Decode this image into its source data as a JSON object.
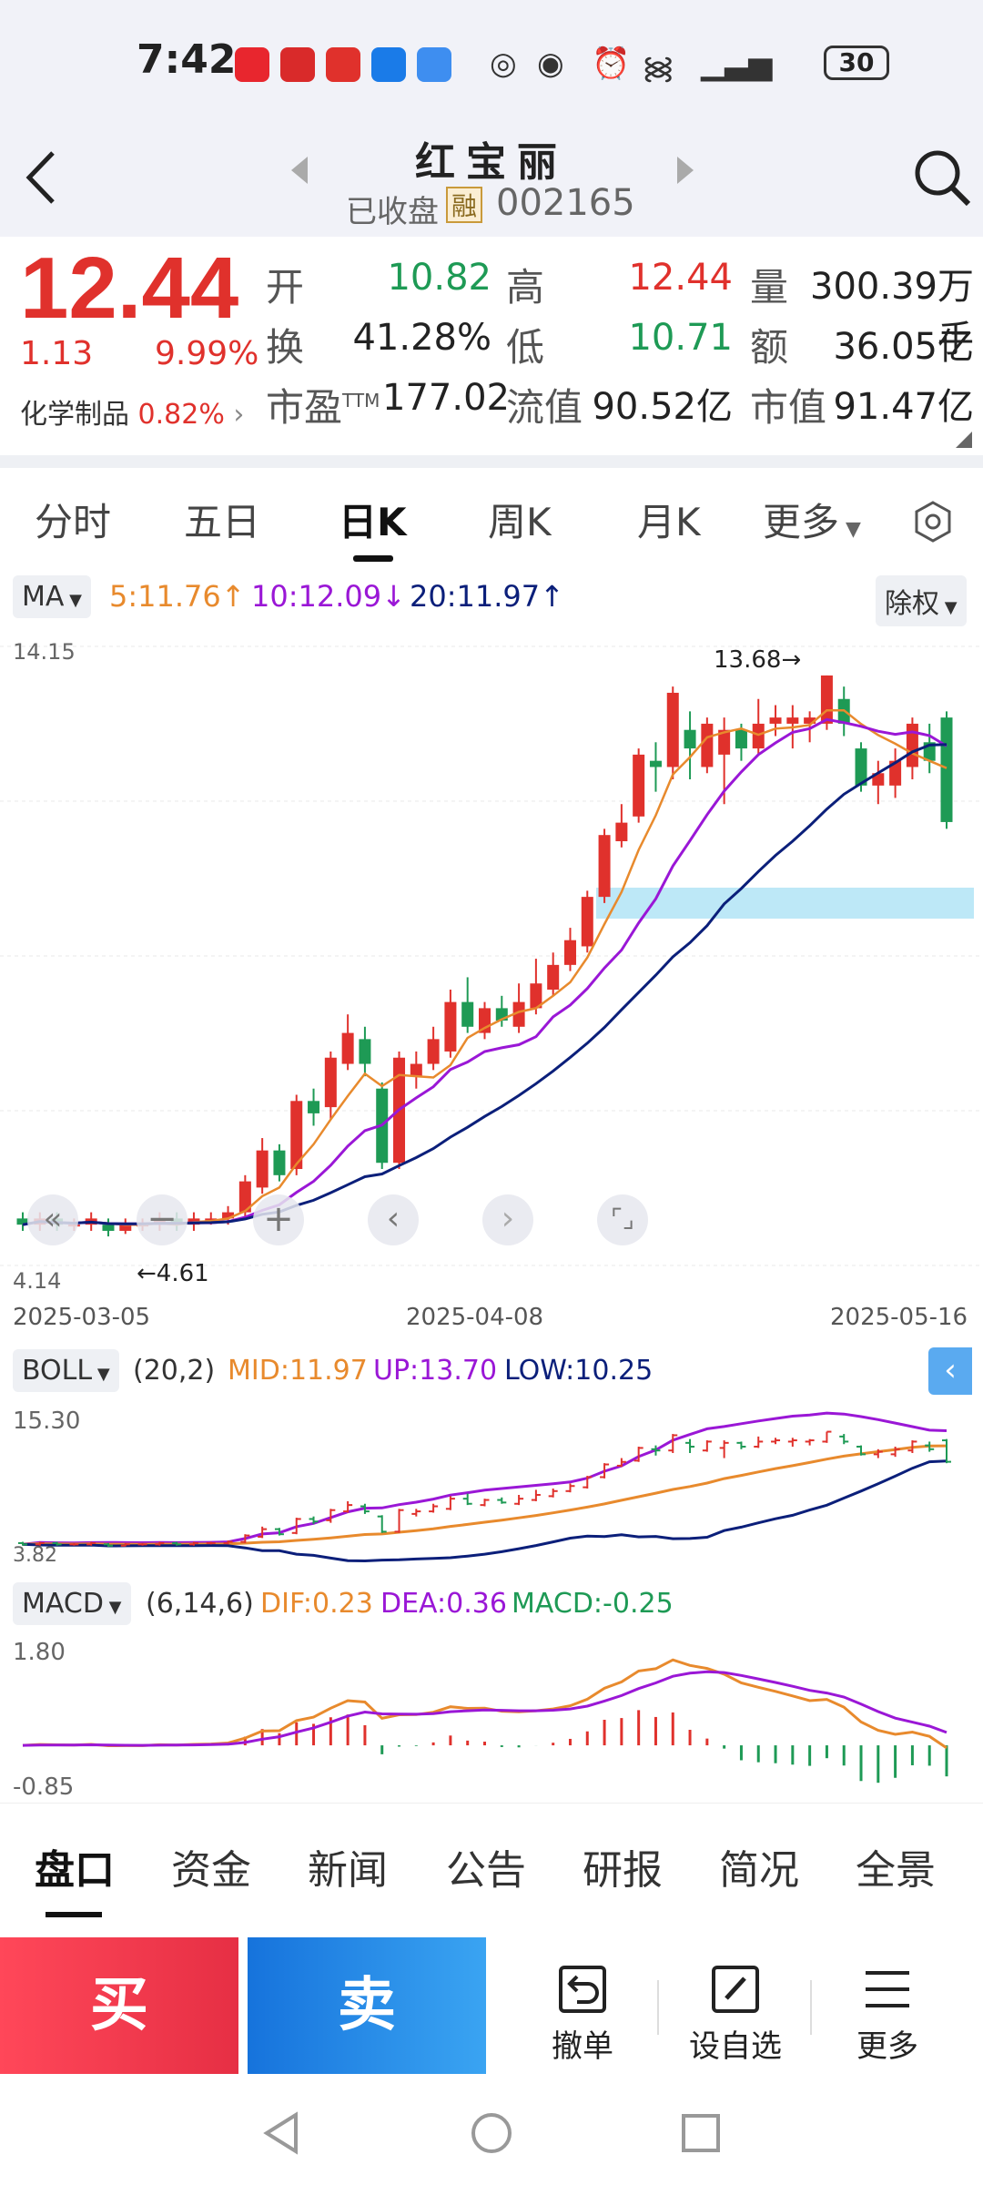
{
  "status_bar": {
    "time": "7:42",
    "battery": "30"
  },
  "header": {
    "title": "红宝丽",
    "status": "已收盘",
    "margin_badge": "融",
    "code": "002165"
  },
  "quote": {
    "price": "12.44",
    "change": "1.13",
    "change_pct": "9.99%",
    "sector_name": "化学制品",
    "sector_pct": "0.82%",
    "fields": [
      {
        "label": "开",
        "value": "10.82",
        "color": "green"
      },
      {
        "label": "高",
        "value": "12.44",
        "color": "red"
      },
      {
        "label": "量",
        "value": "300.39万手",
        "color": "black"
      },
      {
        "label": "换",
        "value": "41.28%",
        "color": "black"
      },
      {
        "label": "低",
        "value": "10.71",
        "color": "green"
      },
      {
        "label": "额",
        "value": "36.05亿",
        "color": "black"
      },
      {
        "label": "市盈",
        "value": "177.02",
        "color": "black",
        "sup": "TTM"
      },
      {
        "label": "流值",
        "value": "90.52亿",
        "color": "black"
      },
      {
        "label": "市值",
        "value": "91.47亿",
        "color": "black"
      }
    ]
  },
  "chart_tabs": [
    "分时",
    "五日",
    "日K",
    "周K",
    "月K",
    "更多"
  ],
  "active_chart_tab": "日K",
  "ma": {
    "label": "MA",
    "ma5": "5:11.76",
    "ma10": "10:12.09",
    "ma20": "20:11.97",
    "adjust": "除权"
  },
  "kline": {
    "ymax_label": "14.15",
    "ymin_label": "4.14",
    "high_mark": "13.68",
    "low_mark": "4.61",
    "dates": [
      "2025-03-05",
      "2025-04-08",
      "2025-05-16"
    ]
  },
  "boll": {
    "label": "BOLL",
    "params": "(20,2)",
    "mid": "MID:11.97",
    "up": "UP:13.70",
    "low": "LOW:10.25",
    "ymax": "15.30",
    "ymin": "3.82"
  },
  "macd": {
    "label": "MACD",
    "params": "(6,14,6)",
    "dif": "DIF:0.23",
    "dea": "DEA:0.36",
    "macd": "MACD:-0.25",
    "ymax": "1.80",
    "ymin": "-0.85"
  },
  "bottom_tabs": [
    "盘口",
    "资金",
    "新闻",
    "公告",
    "研报",
    "简况",
    "全景"
  ],
  "actions": {
    "buy": "买",
    "sell": "卖",
    "cancel": "撤单",
    "watch": "设自选",
    "more": "更多"
  },
  "colors": {
    "up": "#e0312c",
    "down": "#1e9a55",
    "ma5": "#e88a2d",
    "ma10": "#9a17d6",
    "ma20": "#0b1f7a"
  },
  "chart_data": {
    "type": "candlestick",
    "series": [
      {
        "open": 4.9,
        "close": 4.8,
        "high": 5.0,
        "low": 4.7
      },
      {
        "open": 4.8,
        "close": 4.9,
        "high": 5.0,
        "low": 4.7
      },
      {
        "open": 4.9,
        "close": 4.8,
        "high": 5.0,
        "low": 4.7
      },
      {
        "open": 4.8,
        "close": 4.8,
        "high": 4.9,
        "low": 4.7
      },
      {
        "open": 4.8,
        "close": 4.9,
        "high": 5.0,
        "low": 4.7
      },
      {
        "open": 4.8,
        "close": 4.7,
        "high": 4.9,
        "low": 4.61
      },
      {
        "open": 4.7,
        "close": 4.8,
        "high": 4.9,
        "low": 4.65
      },
      {
        "open": 4.8,
        "close": 4.8,
        "high": 4.9,
        "low": 4.7
      },
      {
        "open": 4.8,
        "close": 4.9,
        "high": 5.0,
        "low": 4.7
      },
      {
        "open": 4.9,
        "close": 4.8,
        "high": 5.0,
        "low": 4.7
      },
      {
        "open": 4.8,
        "close": 4.9,
        "high": 5.0,
        "low": 4.7
      },
      {
        "open": 4.9,
        "close": 4.9,
        "high": 5.0,
        "low": 4.8
      },
      {
        "open": 4.9,
        "close": 5.0,
        "high": 5.1,
        "low": 4.8
      },
      {
        "open": 5.0,
        "close": 5.5,
        "high": 5.6,
        "low": 4.9
      },
      {
        "open": 5.4,
        "close": 6.0,
        "high": 6.2,
        "low": 5.3
      },
      {
        "open": 6.0,
        "close": 5.6,
        "high": 6.1,
        "low": 5.5
      },
      {
        "open": 5.7,
        "close": 6.8,
        "high": 6.9,
        "low": 5.6
      },
      {
        "open": 6.8,
        "close": 6.6,
        "high": 7.0,
        "low": 6.4
      },
      {
        "open": 6.7,
        "close": 7.5,
        "high": 7.6,
        "low": 6.5
      },
      {
        "open": 7.4,
        "close": 7.9,
        "high": 8.2,
        "low": 7.3
      },
      {
        "open": 7.8,
        "close": 7.4,
        "high": 8.0,
        "low": 7.2
      },
      {
        "open": 7.0,
        "close": 5.8,
        "high": 7.1,
        "low": 5.7
      },
      {
        "open": 5.8,
        "close": 7.5,
        "high": 7.6,
        "low": 5.7
      },
      {
        "open": 7.2,
        "close": 7.4,
        "high": 7.6,
        "low": 7.0
      },
      {
        "open": 7.4,
        "close": 7.8,
        "high": 8.0,
        "low": 7.3
      },
      {
        "open": 7.6,
        "close": 8.4,
        "high": 8.6,
        "low": 7.5
      },
      {
        "open": 8.4,
        "close": 8.0,
        "high": 8.8,
        "low": 7.9
      },
      {
        "open": 7.9,
        "close": 8.3,
        "high": 8.4,
        "low": 7.8
      },
      {
        "open": 8.3,
        "close": 8.1,
        "high": 8.5,
        "low": 8.0
      },
      {
        "open": 8.0,
        "close": 8.4,
        "high": 8.7,
        "low": 7.9
      },
      {
        "open": 8.3,
        "close": 8.7,
        "high": 9.1,
        "low": 8.2
      },
      {
        "open": 8.6,
        "close": 9.0,
        "high": 9.2,
        "low": 8.5
      },
      {
        "open": 9.0,
        "close": 9.4,
        "high": 9.6,
        "low": 8.9
      },
      {
        "open": 9.3,
        "close": 10.1,
        "high": 10.2,
        "low": 9.2
      },
      {
        "open": 10.1,
        "close": 11.1,
        "high": 11.2,
        "low": 10.0
      },
      {
        "open": 11.0,
        "close": 11.3,
        "high": 11.6,
        "low": 10.9
      },
      {
        "open": 11.4,
        "close": 12.4,
        "high": 12.5,
        "low": 11.3
      },
      {
        "open": 12.3,
        "close": 12.2,
        "high": 12.6,
        "low": 11.8
      },
      {
        "open": 12.2,
        "close": 13.4,
        "high": 13.5,
        "low": 12.0
      },
      {
        "open": 12.8,
        "close": 12.5,
        "high": 13.1,
        "low": 12.0
      },
      {
        "open": 12.2,
        "close": 12.9,
        "high": 13.0,
        "low": 12.1
      },
      {
        "open": 12.4,
        "close": 12.8,
        "high": 13.0,
        "low": 11.6
      },
      {
        "open": 12.8,
        "close": 12.5,
        "high": 12.9,
        "low": 12.3
      },
      {
        "open": 12.5,
        "close": 12.9,
        "high": 13.3,
        "low": 12.4
      },
      {
        "open": 12.9,
        "close": 13.0,
        "high": 13.2,
        "low": 12.7
      },
      {
        "open": 12.9,
        "close": 13.0,
        "high": 13.2,
        "low": 12.5
      },
      {
        "open": 12.9,
        "close": 13.0,
        "high": 13.1,
        "low": 12.6
      },
      {
        "open": 12.9,
        "close": 13.68,
        "high": 13.68,
        "low": 12.8
      },
      {
        "open": 13.3,
        "close": 12.9,
        "high": 13.5,
        "low": 12.7
      },
      {
        "open": 12.5,
        "close": 11.9,
        "high": 12.6,
        "low": 11.8
      },
      {
        "open": 11.9,
        "close": 12.1,
        "high": 12.3,
        "low": 11.6
      },
      {
        "open": 11.9,
        "close": 12.3,
        "high": 12.5,
        "low": 11.7
      },
      {
        "open": 12.2,
        "close": 12.9,
        "high": 13.0,
        "low": 12.0
      },
      {
        "open": 12.6,
        "close": 12.3,
        "high": 12.9,
        "low": 12.1
      },
      {
        "open": 13.0,
        "close": 11.31,
        "high": 13.1,
        "low": 11.2
      }
    ],
    "ylim": [
      4.14,
      14.15
    ],
    "x_labels": [
      "2025-03-05",
      "2025-04-08",
      "2025-05-16"
    ]
  }
}
